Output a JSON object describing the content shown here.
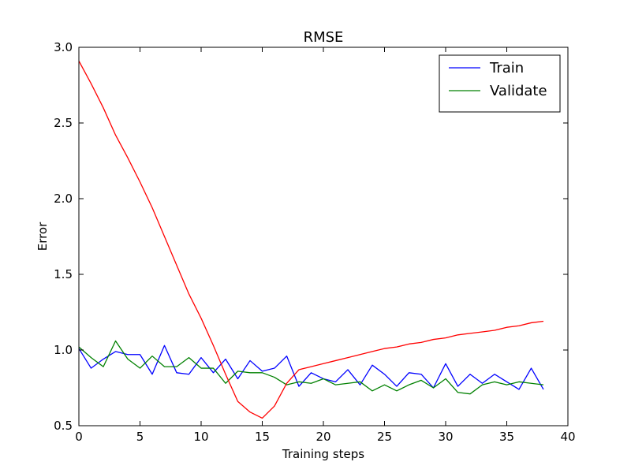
{
  "chart_data": {
    "type": "line",
    "title": "RMSE",
    "xlabel": "Training steps",
    "ylabel": "Error",
    "xlim": [
      0,
      40
    ],
    "ylim": [
      0.5,
      3.0
    ],
    "xticks": [
      0,
      5,
      10,
      15,
      20,
      25,
      30,
      35,
      40
    ],
    "yticks": [
      0.5,
      1.0,
      1.5,
      2.0,
      2.5,
      3.0
    ],
    "xtick_labels": [
      "0",
      "5",
      "10",
      "15",
      "20",
      "25",
      "30",
      "35",
      "40"
    ],
    "ytick_labels": [
      "0.5",
      "1.0",
      "1.5",
      "2.0",
      "2.5",
      "3.0"
    ],
    "grid": false,
    "legend_position": "top-right",
    "x": [
      0,
      1,
      2,
      3,
      4,
      5,
      6,
      7,
      8,
      9,
      10,
      11,
      12,
      13,
      14,
      15,
      16,
      17,
      18,
      19,
      20,
      21,
      22,
      23,
      24,
      25,
      26,
      27,
      28,
      29,
      30,
      31,
      32,
      33,
      34,
      35,
      36,
      37,
      38
    ],
    "series": [
      {
        "name": "Train",
        "color": "#0000ff",
        "in_legend": true,
        "values": [
          1.01,
          0.88,
          0.94,
          0.99,
          0.97,
          0.97,
          0.84,
          1.03,
          0.85,
          0.84,
          0.95,
          0.85,
          0.94,
          0.81,
          0.93,
          0.86,
          0.88,
          0.96,
          0.76,
          0.85,
          0.81,
          0.79,
          0.87,
          0.77,
          0.9,
          0.84,
          0.76,
          0.85,
          0.84,
          0.75,
          0.91,
          0.76,
          0.84,
          0.78,
          0.84,
          0.79,
          0.74,
          0.88,
          0.74
        ]
      },
      {
        "name": "Validate",
        "color": "#008000",
        "in_legend": true,
        "values": [
          1.02,
          0.95,
          0.89,
          1.06,
          0.94,
          0.88,
          0.96,
          0.89,
          0.89,
          0.95,
          0.88,
          0.88,
          0.78,
          0.86,
          0.85,
          0.85,
          0.82,
          0.77,
          0.79,
          0.78,
          0.81,
          0.77,
          0.78,
          0.79,
          0.73,
          0.77,
          0.73,
          0.77,
          0.8,
          0.75,
          0.81,
          0.72,
          0.71,
          0.77,
          0.79,
          0.77,
          0.79,
          0.78,
          0.77
        ]
      },
      {
        "name": "",
        "color": "#ff0000",
        "in_legend": false,
        "values": [
          2.91,
          2.76,
          2.6,
          2.42,
          2.27,
          2.11,
          1.94,
          1.75,
          1.56,
          1.37,
          1.21,
          1.03,
          0.84,
          0.66,
          0.59,
          0.55,
          0.63,
          0.78,
          0.87,
          0.89,
          0.91,
          0.93,
          0.95,
          0.97,
          0.99,
          1.01,
          1.02,
          1.04,
          1.05,
          1.07,
          1.08,
          1.1,
          1.11,
          1.12,
          1.13,
          1.15,
          1.16,
          1.18,
          1.19
        ]
      }
    ]
  }
}
